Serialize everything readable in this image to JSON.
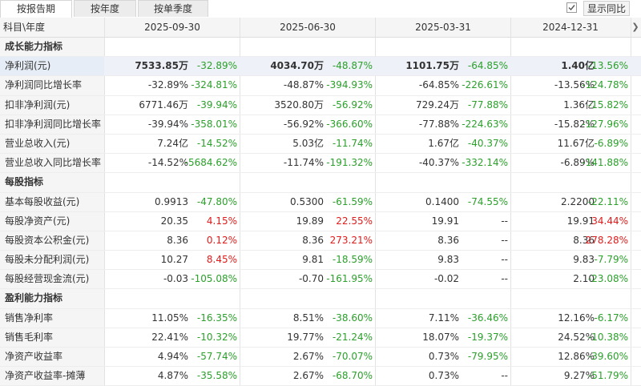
{
  "tabs": [
    {
      "label": "按报告期",
      "active": true
    },
    {
      "label": "按年度",
      "active": false
    },
    {
      "label": "按单季度",
      "active": false
    }
  ],
  "yoy_toggle": {
    "label": "显示同比",
    "checked": true
  },
  "header": {
    "first": "科目\\年度",
    "periods": [
      "2025-09-30",
      "2025-06-30",
      "2025-03-31",
      "2024-12-31"
    ]
  },
  "colors": {
    "red": "#e01b1b",
    "green": "#2ba02b",
    "highlight": "#eef2f8"
  },
  "rows": [
    {
      "type": "section",
      "label": "成长能力指标"
    },
    {
      "type": "data",
      "highlight": true,
      "label": "净利润(元)",
      "cells": [
        {
          "v": "7533.85万",
          "p": "-32.89%"
        },
        {
          "v": "4034.70万",
          "p": "-48.87%"
        },
        {
          "v": "1101.75万",
          "p": "-64.85%"
        },
        {
          "v": "1.40亿",
          "p": "-13.56%"
        }
      ]
    },
    {
      "type": "data",
      "label": "净利润同比增长率",
      "cells": [
        {
          "v": "-32.89%",
          "p": "-324.81%"
        },
        {
          "v": "-48.87%",
          "p": "-394.93%"
        },
        {
          "v": "-64.85%",
          "p": "-226.61%"
        },
        {
          "v": "-13.56%",
          "p": "-124.78%"
        }
      ]
    },
    {
      "type": "data",
      "label": "扣非净利润(元)",
      "cells": [
        {
          "v": "6771.46万",
          "p": "-39.94%"
        },
        {
          "v": "3520.80万",
          "p": "-56.92%"
        },
        {
          "v": "729.24万",
          "p": "-77.88%"
        },
        {
          "v": "1.36亿",
          "p": "-15.82%"
        }
      ]
    },
    {
      "type": "data",
      "label": "扣非净利润同比增长率",
      "cells": [
        {
          "v": "-39.94%",
          "p": "-358.01%"
        },
        {
          "v": "-56.92%",
          "p": "-366.60%"
        },
        {
          "v": "-77.88%",
          "p": "-224.63%"
        },
        {
          "v": "-15.82%",
          "p": "-127.96%"
        }
      ]
    },
    {
      "type": "data",
      "label": "营业总收入(元)",
      "cells": [
        {
          "v": "7.24亿",
          "p": "-14.52%"
        },
        {
          "v": "5.03亿",
          "p": "-11.74%"
        },
        {
          "v": "1.67亿",
          "p": "-40.37%"
        },
        {
          "v": "11.67亿",
          "p": "-6.89%"
        }
      ]
    },
    {
      "type": "data",
      "label": "营业总收入同比增长率",
      "cells": [
        {
          "v": "-14.52%",
          "p": "-5684.62%"
        },
        {
          "v": "-11.74%",
          "p": "-191.32%"
        },
        {
          "v": "-40.37%",
          "p": "-332.14%"
        },
        {
          "v": "-6.89%",
          "p": "-141.88%"
        }
      ]
    },
    {
      "type": "section",
      "label": "每股指标"
    },
    {
      "type": "data",
      "label": "基本每股收益(元)",
      "cells": [
        {
          "v": "0.9913",
          "p": "-47.80%"
        },
        {
          "v": "0.5300",
          "p": "-61.59%"
        },
        {
          "v": "0.1400",
          "p": "-74.55%"
        },
        {
          "v": "2.2200",
          "p": "-22.11%"
        }
      ]
    },
    {
      "type": "data",
      "label": "每股净资产(元)",
      "cells": [
        {
          "v": "20.35",
          "p": "4.15%"
        },
        {
          "v": "19.89",
          "p": "22.55%"
        },
        {
          "v": "19.91",
          "p": "--"
        },
        {
          "v": "19.91",
          "p": "34.44%"
        }
      ]
    },
    {
      "type": "data",
      "label": "每股资本公积金(元)",
      "cells": [
        {
          "v": "8.36",
          "p": "0.12%"
        },
        {
          "v": "8.36",
          "p": "273.21%"
        },
        {
          "v": "8.36",
          "p": "--"
        },
        {
          "v": "8.36",
          "p": "278.28%"
        }
      ]
    },
    {
      "type": "data",
      "label": "每股未分配利润(元)",
      "cells": [
        {
          "v": "10.27",
          "p": "8.45%"
        },
        {
          "v": "9.81",
          "p": "-18.59%"
        },
        {
          "v": "9.83",
          "p": "--"
        },
        {
          "v": "9.83",
          "p": "-7.79%"
        }
      ]
    },
    {
      "type": "data",
      "label": "每股经营现金流(元)",
      "cells": [
        {
          "v": "-0.03",
          "p": "-105.08%"
        },
        {
          "v": "-0.70",
          "p": "-161.95%"
        },
        {
          "v": "-0.02",
          "p": "--"
        },
        {
          "v": "2.10",
          "p": "-23.08%"
        }
      ]
    },
    {
      "type": "section",
      "label": "盈利能力指标"
    },
    {
      "type": "data",
      "label": "销售净利率",
      "cells": [
        {
          "v": "11.05%",
          "p": "-16.35%"
        },
        {
          "v": "8.51%",
          "p": "-38.60%"
        },
        {
          "v": "7.11%",
          "p": "-36.46%"
        },
        {
          "v": "12.16%",
          "p": "-6.17%"
        }
      ]
    },
    {
      "type": "data",
      "label": "销售毛利率",
      "cells": [
        {
          "v": "22.41%",
          "p": "-10.32%"
        },
        {
          "v": "19.77%",
          "p": "-21.24%"
        },
        {
          "v": "18.07%",
          "p": "-19.37%"
        },
        {
          "v": "24.52%",
          "p": "-10.38%"
        }
      ]
    },
    {
      "type": "data",
      "label": "净资产收益率",
      "cells": [
        {
          "v": "4.94%",
          "p": "-57.74%"
        },
        {
          "v": "2.67%",
          "p": "-70.07%"
        },
        {
          "v": "0.73%",
          "p": "-79.95%"
        },
        {
          "v": "12.86%",
          "p": "-39.60%"
        }
      ]
    },
    {
      "type": "data",
      "label": "净资产收益率-摊薄",
      "cells": [
        {
          "v": "4.87%",
          "p": "-35.58%"
        },
        {
          "v": "2.67%",
          "p": "-68.70%"
        },
        {
          "v": "0.73%",
          "p": "--"
        },
        {
          "v": "9.27%",
          "p": "-51.79%"
        }
      ]
    }
  ]
}
